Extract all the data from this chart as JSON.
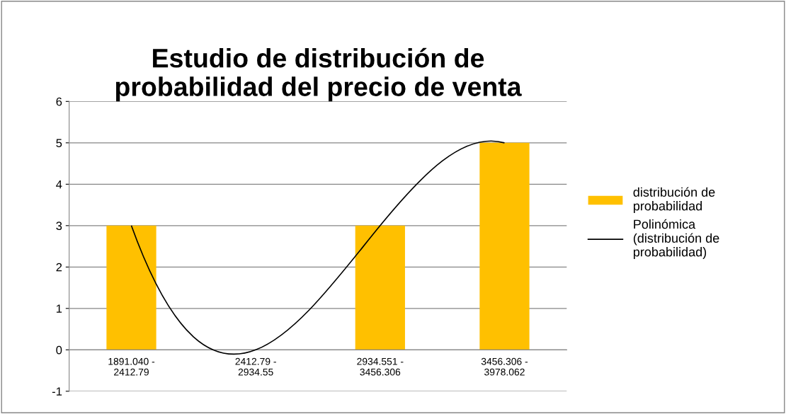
{
  "chart_data": {
    "type": "bar",
    "title": "Estudio de distribución de\nprobabilidad del precio de venta",
    "categories": [
      "1891.040 -\n2412.79",
      "2412.79 -\n2934.55",
      "2934.551 -\n3456.306",
      "3456.306 -\n3978.062"
    ],
    "series": [
      {
        "name": "distribución de\nprobabilidad",
        "color": "#ffc000",
        "values": [
          3,
          0,
          3,
          5
        ]
      },
      {
        "name": "Polinómica\n(distribución de\nprobabilidad)",
        "type": "line",
        "color": "#000000",
        "values": [
          3,
          0,
          3,
          5
        ]
      }
    ],
    "ylim": [
      -1,
      6
    ],
    "yticks": [
      -1,
      0,
      1,
      2,
      3,
      4,
      5,
      6
    ],
    "grid": "y",
    "legend": "right"
  }
}
